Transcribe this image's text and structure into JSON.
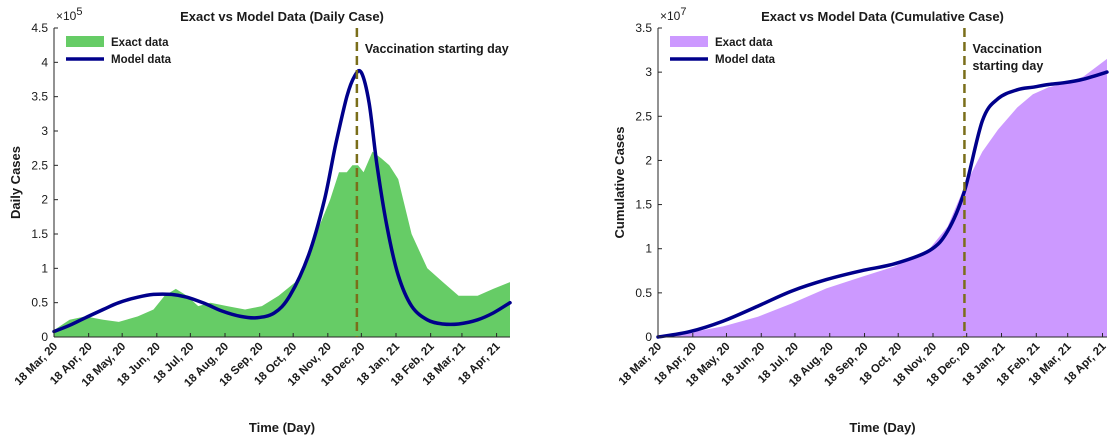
{
  "chart_data": [
    {
      "type": "area",
      "title": "Exact vs Model Data (Daily Case)",
      "xlabel": "Time (Day)",
      "ylabel": "Daily Cases",
      "y_exponent_label": "×10",
      "y_exponent": "5",
      "ylim": [
        0,
        450000
      ],
      "yticks": [
        0,
        50000,
        100000,
        150000,
        200000,
        250000,
        300000,
        350000,
        400000,
        450000
      ],
      "ytick_labels": [
        "0",
        "0.5",
        "1",
        "1.5",
        "2",
        "2.5",
        "3",
        "3.5",
        "4",
        "4.5"
      ],
      "xlim": [
        "2020-03-18",
        "2021-04-30"
      ],
      "x_tick_dates": [
        "2020-03-18",
        "2020-04-18",
        "2020-05-18",
        "2020-06-18",
        "2020-07-18",
        "2020-08-18",
        "2020-09-18",
        "2020-10-18",
        "2020-11-18",
        "2020-12-18",
        "2021-01-18",
        "2021-02-18",
        "2021-03-18",
        "2021-04-18"
      ],
      "x_tick_labels": [
        "18 Mar, 20",
        "18 Apr, 20",
        "18 May, 20",
        "18 Jun, 20",
        "18 Jul, 20",
        "18 Aug, 20",
        "18 Sep, 20",
        "18 Oct, 20",
        "18 Nov, 20",
        "18 Dec, 20",
        "18 Jan, 21",
        "18 Feb, 21",
        "18 Mar, 21",
        "18 Apr, 21"
      ],
      "vline": {
        "date": "2020-12-14",
        "label": [
          "Vaccination starting day"
        ]
      },
      "legend": {
        "placement": "top-left"
      },
      "series": [
        {
          "name": "Exact data",
          "style": "area",
          "color": "#66cc66",
          "x": [
            "2020-03-18",
            "2020-04-01",
            "2020-04-15",
            "2020-05-01",
            "2020-05-15",
            "2020-06-01",
            "2020-06-15",
            "2020-06-25",
            "2020-07-05",
            "2020-07-15",
            "2020-07-25",
            "2020-08-05",
            "2020-08-20",
            "2020-09-05",
            "2020-09-20",
            "2020-10-05",
            "2020-10-20",
            "2020-11-01",
            "2020-11-10",
            "2020-11-20",
            "2020-11-28",
            "2020-12-05",
            "2020-12-10",
            "2020-12-15",
            "2020-12-20",
            "2020-12-28",
            "2021-01-05",
            "2021-01-12",
            "2021-01-20",
            "2021-02-01",
            "2021-02-15",
            "2021-03-01",
            "2021-03-15",
            "2021-04-01",
            "2021-04-15",
            "2021-04-30"
          ],
          "y": [
            10000,
            25000,
            30000,
            25000,
            22000,
            30000,
            40000,
            60000,
            70000,
            60000,
            45000,
            50000,
            45000,
            40000,
            45000,
            60000,
            80000,
            120000,
            160000,
            200000,
            240000,
            240000,
            250000,
            250000,
            240000,
            270000,
            260000,
            250000,
            230000,
            150000,
            100000,
            80000,
            60000,
            60000,
            70000,
            80000
          ]
        },
        {
          "name": "Model data",
          "style": "line",
          "color": "#00008b",
          "x": [
            "2020-03-18",
            "2020-04-01",
            "2020-04-15",
            "2020-05-01",
            "2020-05-15",
            "2020-06-01",
            "2020-06-15",
            "2020-07-01",
            "2020-07-15",
            "2020-08-01",
            "2020-08-15",
            "2020-09-01",
            "2020-09-15",
            "2020-10-01",
            "2020-10-15",
            "2020-11-01",
            "2020-11-15",
            "2020-11-25",
            "2020-12-05",
            "2020-12-12",
            "2020-12-18",
            "2020-12-25",
            "2021-01-01",
            "2021-01-10",
            "2021-01-20",
            "2021-02-01",
            "2021-02-15",
            "2021-03-01",
            "2021-03-15",
            "2021-04-01",
            "2021-04-15",
            "2021-04-30"
          ],
          "y": [
            8000,
            17000,
            28000,
            40000,
            50000,
            58000,
            62000,
            62000,
            58000,
            48000,
            38000,
            30000,
            28000,
            35000,
            60000,
            120000,
            200000,
            280000,
            350000,
            380000,
            385000,
            340000,
            250000,
            160000,
            90000,
            45000,
            25000,
            19000,
            19000,
            25000,
            35000,
            50000
          ]
        }
      ]
    },
    {
      "type": "area",
      "title": "Exact vs Model Data (Cumulative Case)",
      "xlabel": "Time (Day)",
      "ylabel": "Cumulative Cases",
      "y_exponent_label": "×10",
      "y_exponent": "7",
      "ylim": [
        0,
        35000000
      ],
      "yticks": [
        0,
        5000000,
        10000000,
        15000000,
        20000000,
        25000000,
        30000000,
        35000000
      ],
      "ytick_labels": [
        "0",
        "0.5",
        "1",
        "1.5",
        "2",
        "2.5",
        "3",
        "3.5"
      ],
      "xlim": [
        "2020-03-18",
        "2021-04-22"
      ],
      "x_tick_dates": [
        "2020-03-18",
        "2020-04-18",
        "2020-05-18",
        "2020-06-18",
        "2020-07-18",
        "2020-08-18",
        "2020-09-18",
        "2020-10-18",
        "2020-11-18",
        "2020-12-18",
        "2021-01-18",
        "2021-02-18",
        "2021-03-18",
        "2021-04-18"
      ],
      "x_tick_labels": [
        "18 Mar, 20",
        "18 Apr, 20",
        "18 May, 20",
        "18 Jun, 20",
        "18 Jul, 20",
        "18 Aug, 20",
        "18 Sep, 20",
        "18 Oct, 20",
        "18 Nov, 20",
        "18 Dec, 20",
        "18 Jan, 21",
        "18 Feb, 21",
        "18 Mar, 21",
        "18 Apr, 21"
      ],
      "vline": {
        "date": "2020-12-16",
        "label": [
          "Vaccination",
          "starting day"
        ]
      },
      "legend": {
        "placement": "top-left"
      },
      "series": [
        {
          "name": "Exact data",
          "style": "area",
          "color": "#cc99ff",
          "x": [
            "2020-03-18",
            "2020-04-15",
            "2020-05-15",
            "2020-06-15",
            "2020-07-15",
            "2020-08-15",
            "2020-09-15",
            "2020-10-15",
            "2020-11-15",
            "2020-12-01",
            "2020-12-16",
            "2021-01-01",
            "2021-01-15",
            "2021-02-01",
            "2021-02-15",
            "2021-03-01",
            "2021-03-15",
            "2021-04-01",
            "2021-04-22"
          ],
          "y": [
            0,
            500000,
            1200000,
            2300000,
            3800000,
            5500000,
            6800000,
            8000000,
            10000000,
            12500000,
            17000000,
            21000000,
            23500000,
            26000000,
            27500000,
            28300000,
            28700000,
            29500000,
            31500000
          ]
        },
        {
          "name": "Model data",
          "style": "line",
          "color": "#00008b",
          "x": [
            "2020-03-18",
            "2020-04-15",
            "2020-05-15",
            "2020-06-15",
            "2020-07-15",
            "2020-08-15",
            "2020-09-15",
            "2020-10-15",
            "2020-11-15",
            "2020-12-01",
            "2020-12-16",
            "2021-01-01",
            "2021-01-15",
            "2021-02-01",
            "2021-02-15",
            "2021-03-01",
            "2021-03-15",
            "2021-04-01",
            "2021-04-22"
          ],
          "y": [
            0,
            600000,
            1800000,
            3500000,
            5200000,
            6500000,
            7500000,
            8300000,
            9800000,
            12000000,
            16500000,
            24500000,
            27000000,
            28000000,
            28300000,
            28600000,
            28800000,
            29200000,
            30000000
          ]
        }
      ]
    }
  ]
}
